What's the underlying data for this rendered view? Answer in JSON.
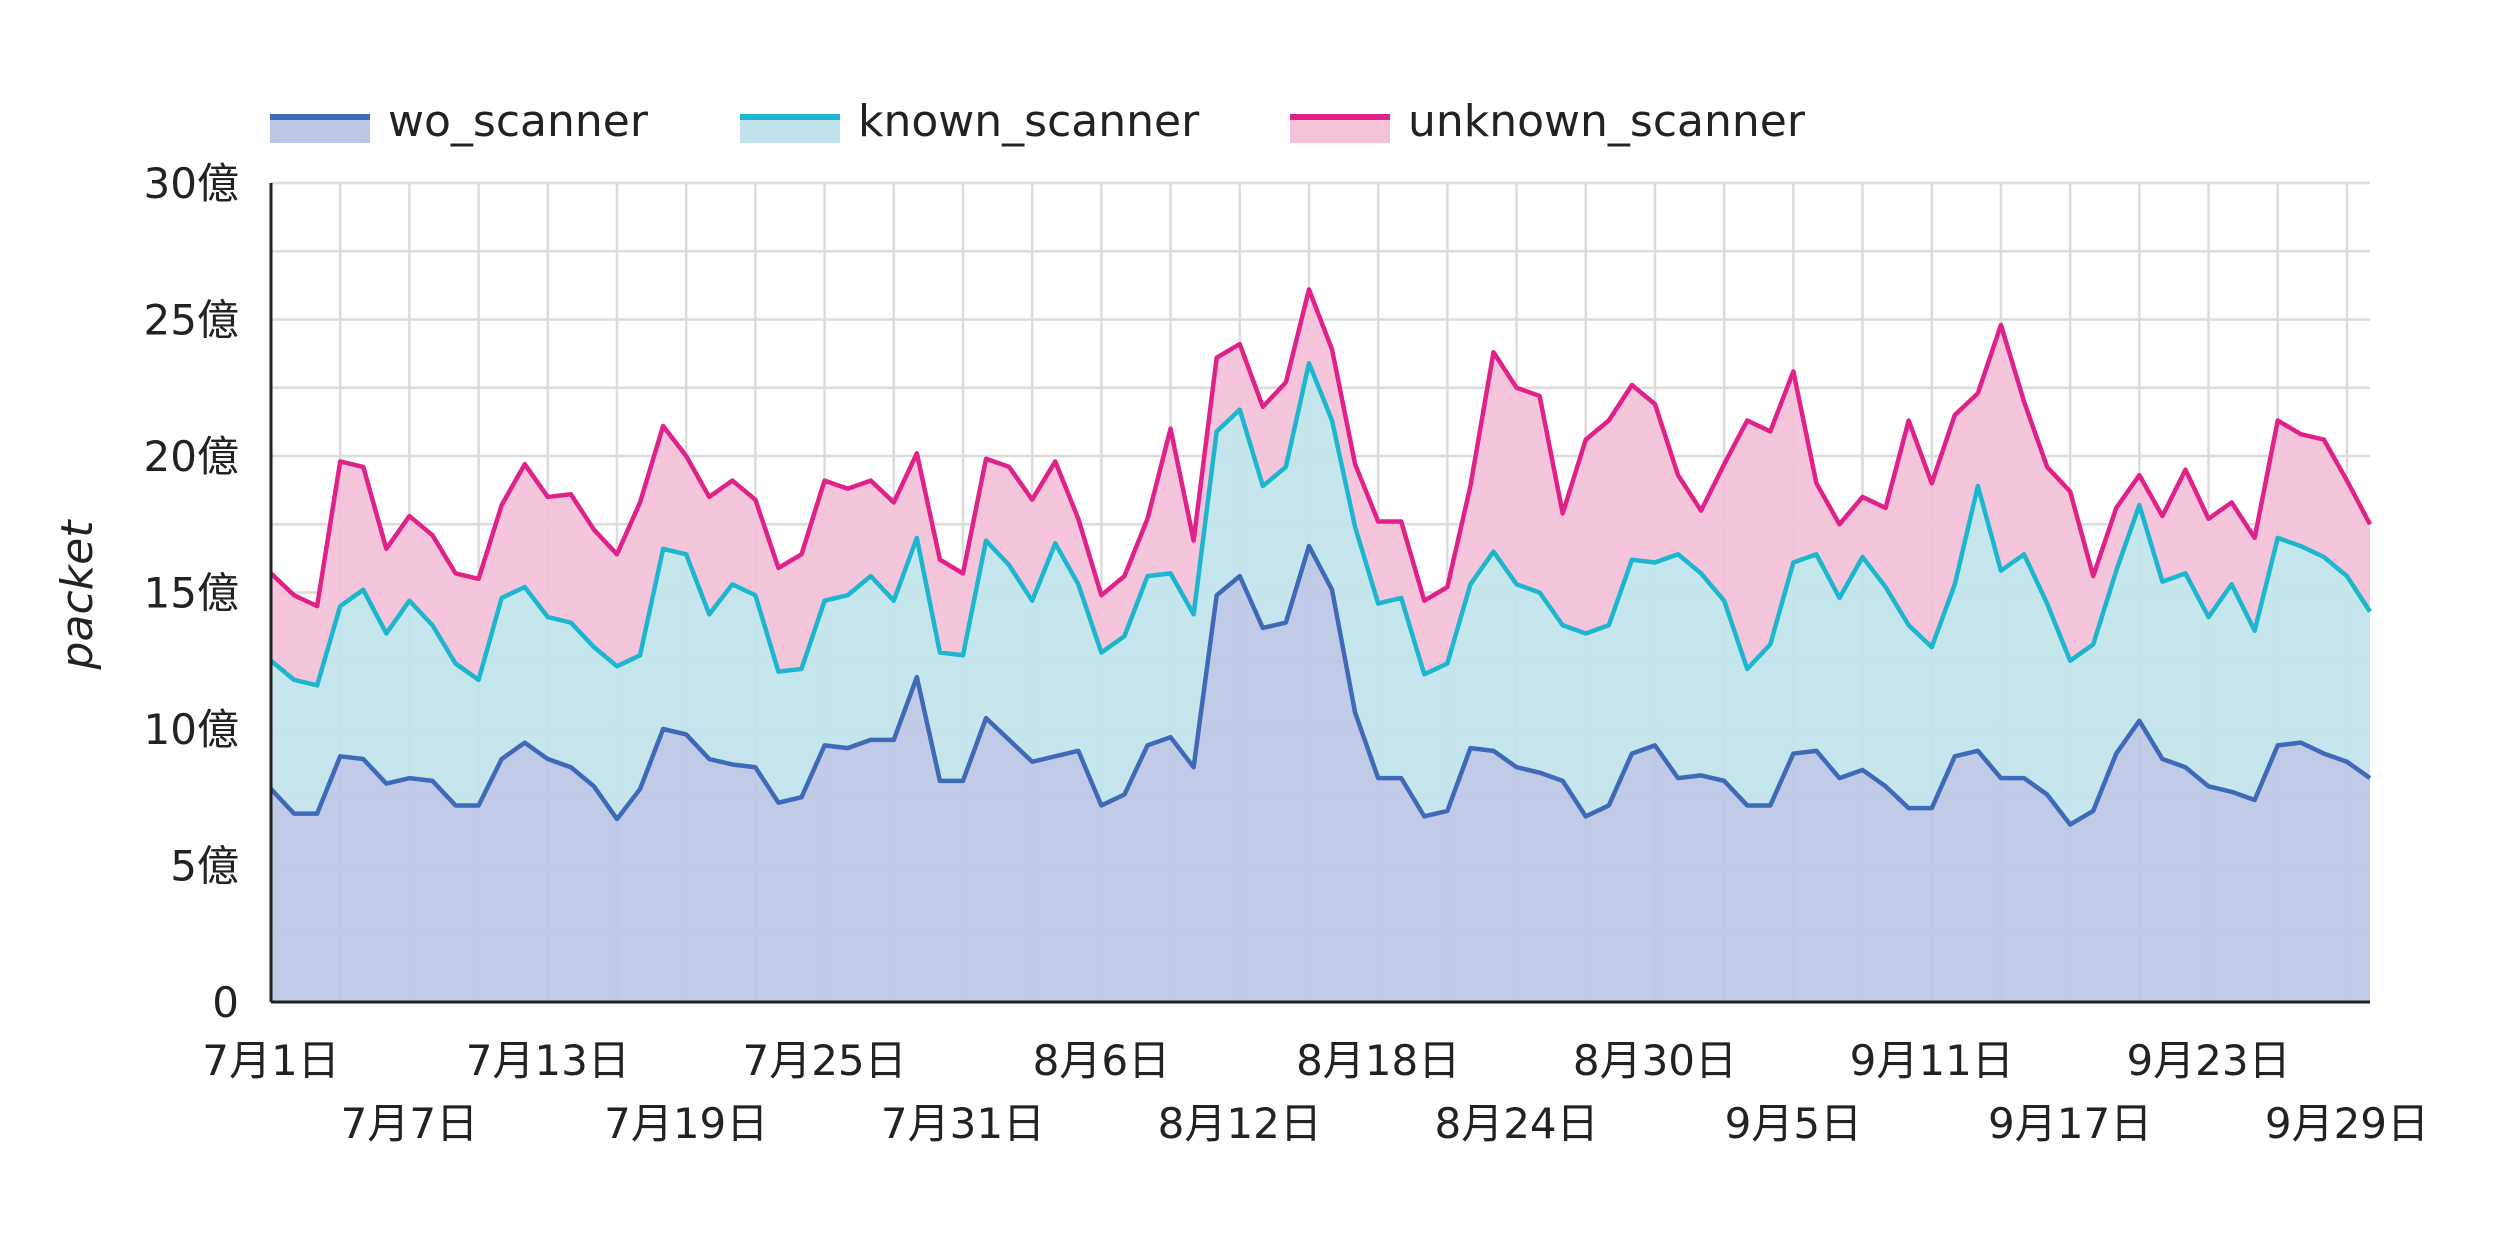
{
  "chart_data": {
    "type": "area",
    "stacked": true,
    "ylabel": "packet",
    "xlabel": "",
    "ylim": [
      0,
      3000000000
    ],
    "y_ticks": [
      {
        "value": 0,
        "label": "0"
      },
      {
        "value": 500000000,
        "label": "5億"
      },
      {
        "value": 1000000000,
        "label": "10億"
      },
      {
        "value": 1500000000,
        "label": "15億"
      },
      {
        "value": 2000000000,
        "label": "20億"
      },
      {
        "value": 2500000000,
        "label": "25億"
      },
      {
        "value": 3000000000,
        "label": "30億"
      }
    ],
    "x_start": "2024-07-01",
    "x_end": "2024-09-30",
    "x_ticks": [
      {
        "date": "2024-07-01",
        "label": "7月1日",
        "row": 0
      },
      {
        "date": "2024-07-07",
        "label": "7月7日",
        "row": 1
      },
      {
        "date": "2024-07-13",
        "label": "7月13日",
        "row": 0
      },
      {
        "date": "2024-07-19",
        "label": "7月19日",
        "row": 1
      },
      {
        "date": "2024-07-25",
        "label": "7月25日",
        "row": 0
      },
      {
        "date": "2024-07-31",
        "label": "7月31日",
        "row": 1
      },
      {
        "date": "2024-08-06",
        "label": "8月6日",
        "row": 0
      },
      {
        "date": "2024-08-12",
        "label": "8月12日",
        "row": 1
      },
      {
        "date": "2024-08-18",
        "label": "8月18日",
        "row": 0
      },
      {
        "date": "2024-08-24",
        "label": "8月24日",
        "row": 1
      },
      {
        "date": "2024-08-30",
        "label": "8月30日",
        "row": 0
      },
      {
        "date": "2024-09-05",
        "label": "9月5日",
        "row": 1
      },
      {
        "date": "2024-09-11",
        "label": "9月11日",
        "row": 0
      },
      {
        "date": "2024-09-17",
        "label": "9月17日",
        "row": 1
      },
      {
        "date": "2024-09-23",
        "label": "9月23日",
        "row": 0
      },
      {
        "date": "2024-09-29",
        "label": "9月29日",
        "row": 1
      }
    ],
    "legend_position": "top-left",
    "grid": true,
    "series": [
      {
        "name": "wo_scanner",
        "line_color": "#3f6ab8",
        "fill_color": "#bcc7e6",
        "values": [
          0.78,
          0.69,
          0.69,
          0.9,
          0.89,
          0.8,
          0.82,
          0.81,
          0.72,
          0.72,
          0.89,
          0.95,
          0.89,
          0.86,
          0.79,
          0.67,
          0.78,
          1.0,
          0.98,
          0.89,
          0.87,
          0.86,
          0.73,
          0.75,
          0.94,
          0.93,
          0.96,
          0.96,
          1.19,
          0.81,
          0.81,
          1.04,
          0.96,
          0.88,
          0.9,
          0.92,
          0.72,
          0.76,
          0.94,
          0.97,
          0.86,
          1.49,
          1.56,
          1.37,
          1.39,
          1.67,
          1.51,
          1.06,
          0.82,
          0.82,
          0.68,
          0.7,
          0.93,
          0.92,
          0.86,
          0.84,
          0.81,
          0.68,
          0.72,
          0.91,
          0.94,
          0.82,
          0.83,
          0.81,
          0.72,
          0.72,
          0.91,
          0.92,
          0.82,
          0.85,
          0.79,
          0.71,
          0.71,
          0.9,
          0.92,
          0.82,
          0.82,
          0.76,
          0.65,
          0.7,
          0.91,
          1.03,
          0.89,
          0.86,
          0.79,
          0.77,
          0.74,
          0.94,
          0.95,
          0.91,
          0.88,
          0.82
        ]
      },
      {
        "name": "known_scanner",
        "line_color": "#1cb6cf",
        "fill_color": "#c1e4ec",
        "values": [
          0.47,
          0.49,
          0.47,
          0.55,
          0.62,
          0.55,
          0.65,
          0.57,
          0.52,
          0.46,
          0.59,
          0.57,
          0.52,
          0.53,
          0.51,
          0.56,
          0.49,
          0.66,
          0.66,
          0.53,
          0.66,
          0.63,
          0.48,
          0.47,
          0.53,
          0.56,
          0.6,
          0.51,
          0.51,
          0.47,
          0.46,
          0.65,
          0.64,
          0.59,
          0.78,
          0.61,
          0.56,
          0.58,
          0.62,
          0.6,
          0.56,
          0.6,
          0.61,
          0.52,
          0.57,
          0.67,
          0.62,
          0.68,
          0.64,
          0.66,
          0.52,
          0.54,
          0.6,
          0.73,
          0.67,
          0.66,
          0.57,
          0.67,
          0.66,
          0.71,
          0.67,
          0.82,
          0.74,
          0.66,
          0.5,
          0.59,
          0.7,
          0.72,
          0.66,
          0.78,
          0.73,
          0.67,
          0.59,
          0.63,
          0.97,
          0.76,
          0.82,
          0.7,
          0.6,
          0.61,
          0.67,
          0.79,
          0.65,
          0.71,
          0.62,
          0.76,
          0.62,
          0.76,
          0.72,
          0.72,
          0.68,
          0.61
        ]
      },
      {
        "name": "unknown_scanner",
        "line_color": "#e0218a",
        "fill_color": "#f4c2d8",
        "values": [
          0.32,
          0.31,
          0.29,
          0.53,
          0.45,
          0.31,
          0.31,
          0.33,
          0.33,
          0.37,
          0.34,
          0.45,
          0.44,
          0.47,
          0.43,
          0.41,
          0.56,
          0.45,
          0.36,
          0.43,
          0.38,
          0.35,
          0.38,
          0.42,
          0.44,
          0.39,
          0.35,
          0.36,
          0.31,
          0.34,
          0.3,
          0.3,
          0.36,
          0.37,
          0.3,
          0.24,
          0.21,
          0.22,
          0.21,
          0.53,
          0.27,
          0.27,
          0.24,
          0.29,
          0.31,
          0.27,
          0.26,
          0.23,
          0.3,
          0.28,
          0.27,
          0.28,
          0.36,
          0.73,
          0.72,
          0.72,
          0.41,
          0.71,
          0.75,
          0.64,
          0.58,
          0.29,
          0.23,
          0.5,
          0.91,
          0.78,
          0.7,
          0.26,
          0.27,
          0.22,
          0.29,
          0.75,
          0.6,
          0.62,
          0.34,
          0.9,
          0.56,
          0.5,
          0.62,
          0.25,
          0.23,
          0.11,
          0.24,
          0.38,
          0.36,
          0.3,
          0.34,
          0.43,
          0.41,
          0.43,
          0.35,
          0.32
        ]
      }
    ]
  }
}
